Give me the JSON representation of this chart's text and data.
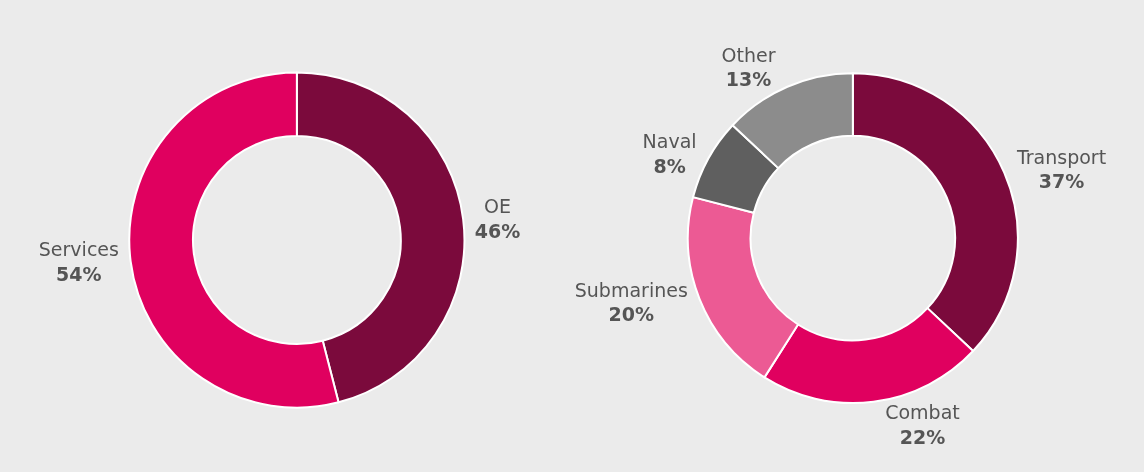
{
  "chart_data": [
    {
      "type": "donut",
      "categories": [
        "OE",
        "Services"
      ],
      "values": [
        46,
        54
      ],
      "value_labels": [
        "46%",
        "54%"
      ],
      "colors": [
        "#7b0a3c",
        "#e0005f"
      ]
    },
    {
      "type": "donut",
      "categories": [
        "Transport",
        "Combat",
        "Submarines",
        "Naval",
        "Other"
      ],
      "values": [
        37,
        22,
        20,
        8,
        13
      ],
      "value_labels": [
        "37%",
        "22%",
        "20%",
        "8%",
        "13%"
      ],
      "colors": [
        "#7b0a3c",
        "#e0005f",
        "#ec5a94",
        "#5f5f5f",
        "#8c8c8c"
      ]
    }
  ]
}
